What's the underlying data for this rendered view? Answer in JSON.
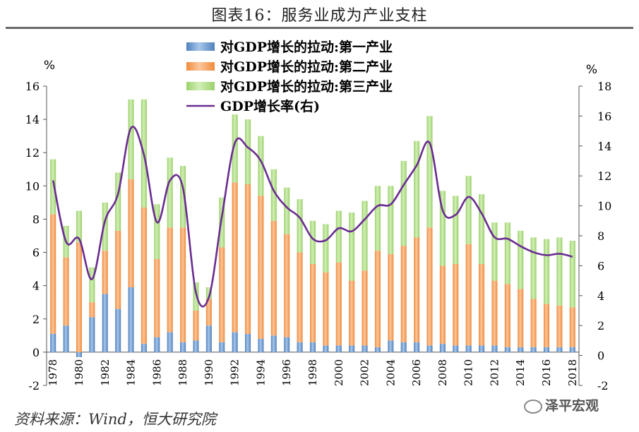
{
  "page": {
    "title": "图表16：服务业成为产业支柱",
    "source": "资料来源：Wind，恒大研究院",
    "watermark": "泽平宏观"
  },
  "colors": {
    "primary": "#4f81bd",
    "secondary": "#f08a3c",
    "tertiary": "#9bd16b",
    "gdp_line": "#6a2c91"
  },
  "chart_data": {
    "type": "bar",
    "stacked": true,
    "left_unit": "%",
    "right_unit": "%",
    "ylim_left": [
      -2,
      16
    ],
    "ylim_right": [
      -2,
      18
    ],
    "yticks_left": [
      -2,
      0,
      2,
      4,
      6,
      8,
      10,
      12,
      14,
      16
    ],
    "yticks_right": [
      -2,
      0,
      2,
      4,
      6,
      8,
      10,
      12,
      14,
      16,
      18
    ],
    "x_tick_labels": [
      "1978",
      "1980",
      "1982",
      "1984",
      "1986",
      "1988",
      "1990",
      "1992",
      "1994",
      "1996",
      "1998",
      "2000",
      "2002",
      "2004",
      "2006",
      "2008",
      "2010",
      "2012",
      "2014",
      "2016",
      "2018"
    ],
    "categories": [
      "1978",
      "1979",
      "1980",
      "1981",
      "1982",
      "1983",
      "1984",
      "1985",
      "1986",
      "1987",
      "1988",
      "1989",
      "1990",
      "1991",
      "1992",
      "1993",
      "1994",
      "1995",
      "1996",
      "1997",
      "1998",
      "1999",
      "2000",
      "2001",
      "2002",
      "2003",
      "2004",
      "2005",
      "2006",
      "2007",
      "2008",
      "2009",
      "2010",
      "2011",
      "2012",
      "2013",
      "2014",
      "2015",
      "2016",
      "2017",
      "2018"
    ],
    "legend_position": "top-center",
    "series": [
      {
        "name": "对GDP增长的拉动:第一产业",
        "kind": "bar",
        "axis": "left",
        "values": [
          1.1,
          1.6,
          -0.3,
          2.1,
          3.5,
          2.6,
          3.9,
          0.5,
          0.9,
          1.2,
          0.6,
          0.7,
          1.6,
          0.6,
          1.2,
          1.1,
          0.8,
          1.0,
          0.9,
          0.6,
          0.6,
          0.4,
          0.4,
          0.4,
          0.4,
          0.3,
          0.7,
          0.6,
          0.6,
          0.4,
          0.5,
          0.4,
          0.4,
          0.4,
          0.4,
          0.3,
          0.3,
          0.3,
          0.3,
          0.3,
          0.3
        ]
      },
      {
        "name": "对GDP增长的拉动:第二产业",
        "kind": "bar",
        "axis": "left",
        "values": [
          7.2,
          4.1,
          6.6,
          0.9,
          2.6,
          4.7,
          6.5,
          8.2,
          4.7,
          6.3,
          6.9,
          1.8,
          1.6,
          5.7,
          9.0,
          9.0,
          8.6,
          6.9,
          6.2,
          5.4,
          4.7,
          4.4,
          5.0,
          3.9,
          4.5,
          5.8,
          5.2,
          5.8,
          6.3,
          7.1,
          4.7,
          4.9,
          6.1,
          4.9,
          3.9,
          3.8,
          3.5,
          2.9,
          2.6,
          2.5,
          2.4
        ]
      },
      {
        "name": "对GDP增长的拉动:第三产业",
        "kind": "bar",
        "axis": "left",
        "values": [
          3.3,
          1.9,
          1.9,
          2.1,
          2.9,
          3.5,
          4.8,
          6.5,
          3.3,
          4.2,
          3.7,
          1.7,
          0.7,
          3.0,
          4.1,
          3.9,
          3.6,
          3.1,
          2.8,
          3.2,
          2.6,
          2.9,
          3.1,
          4.1,
          4.2,
          3.9,
          4.1,
          5.1,
          5.8,
          6.7,
          4.5,
          4.1,
          4.1,
          4.2,
          3.5,
          3.7,
          3.5,
          3.7,
          3.9,
          4.1,
          4.0
        ]
      },
      {
        "name": "GDP增长率(右)",
        "kind": "line",
        "axis": "right",
        "values": [
          11.7,
          7.6,
          7.8,
          5.1,
          9.0,
          10.8,
          15.2,
          13.4,
          8.9,
          11.7,
          11.2,
          4.2,
          3.9,
          9.3,
          14.2,
          13.9,
          13.0,
          11.0,
          9.9,
          9.2,
          7.8,
          7.7,
          8.5,
          8.3,
          9.1,
          10.0,
          10.1,
          11.4,
          12.7,
          14.2,
          9.7,
          9.4,
          10.6,
          9.5,
          7.9,
          7.8,
          7.3,
          6.9,
          6.7,
          6.8,
          6.6
        ]
      }
    ]
  }
}
